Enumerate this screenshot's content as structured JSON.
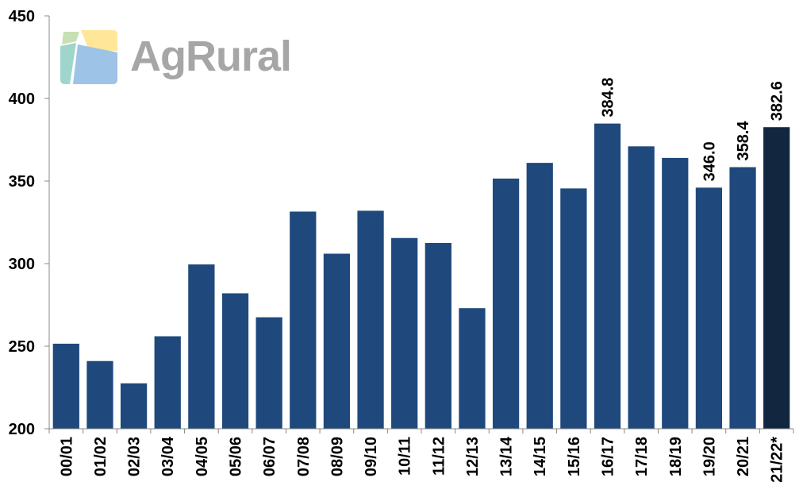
{
  "brand": {
    "name": "AgRural"
  },
  "chart_data": {
    "type": "bar",
    "categories": [
      "00/01",
      "01/02",
      "02/03",
      "03/04",
      "04/05",
      "05/06",
      "06/07",
      "07/08",
      "08/09",
      "09/10",
      "10/11",
      "11/12",
      "12/13",
      "13/14",
      "14/15",
      "15/16",
      "16/17",
      "17/18",
      "18/19",
      "19/20",
      "20/21",
      "21/22*"
    ],
    "values": [
      251.5,
      241,
      227.5,
      256,
      299.5,
      282,
      267.5,
      331.5,
      306,
      332,
      315.5,
      312.5,
      273,
      351.5,
      361,
      345.5,
      384.8,
      371,
      364,
      346.0,
      358.4,
      382.6
    ],
    "data_labels": {
      "16": "384.8",
      "19": "346.0",
      "20": "358.4",
      "21": "382.6"
    },
    "title": "",
    "xlabel": "",
    "ylabel": "",
    "ylim": [
      200,
      450
    ],
    "yticks": [
      200,
      250,
      300,
      350,
      400,
      450
    ],
    "grid": false,
    "colors": {
      "bar": "#1f497d",
      "highlight": "#13263f"
    },
    "highlight_index": 21
  }
}
